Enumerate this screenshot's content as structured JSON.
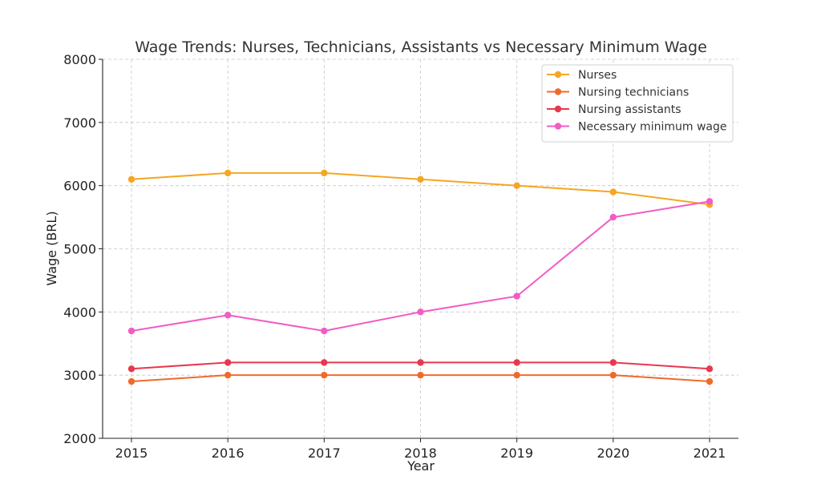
{
  "chart_data": {
    "type": "line",
    "title": "Wage Trends: Nurses, Technicians, Assistants vs Necessary Minimum Wage",
    "xlabel": "Year",
    "ylabel": "Wage (BRL)",
    "x": [
      2015,
      2016,
      2017,
      2018,
      2019,
      2020,
      2021
    ],
    "xticks": [
      "2015",
      "2016",
      "2017",
      "2018",
      "2019",
      "2020",
      "2021"
    ],
    "ylim": [
      2000,
      8000
    ],
    "yticks": [
      "2000",
      "3000",
      "4000",
      "5000",
      "6000",
      "7000",
      "8000"
    ],
    "grid": true,
    "legend_position": "top-right",
    "series": [
      {
        "name": "Nurses",
        "color": "#f5a623",
        "values": [
          6100,
          6200,
          6200,
          6100,
          6000,
          5900,
          5700
        ]
      },
      {
        "name": "Nursing technicians",
        "color": "#ef6b2b",
        "values": [
          2900,
          3000,
          3000,
          3000,
          3000,
          3000,
          2900
        ]
      },
      {
        "name": "Nursing assistants",
        "color": "#e8384f",
        "values": [
          3100,
          3200,
          3200,
          3200,
          3200,
          3200,
          3100
        ]
      },
      {
        "name": "Necessary minimum wage",
        "color": "#f25cc4",
        "values": [
          3700,
          3950,
          3700,
          4000,
          4250,
          5500,
          5750
        ]
      }
    ]
  }
}
